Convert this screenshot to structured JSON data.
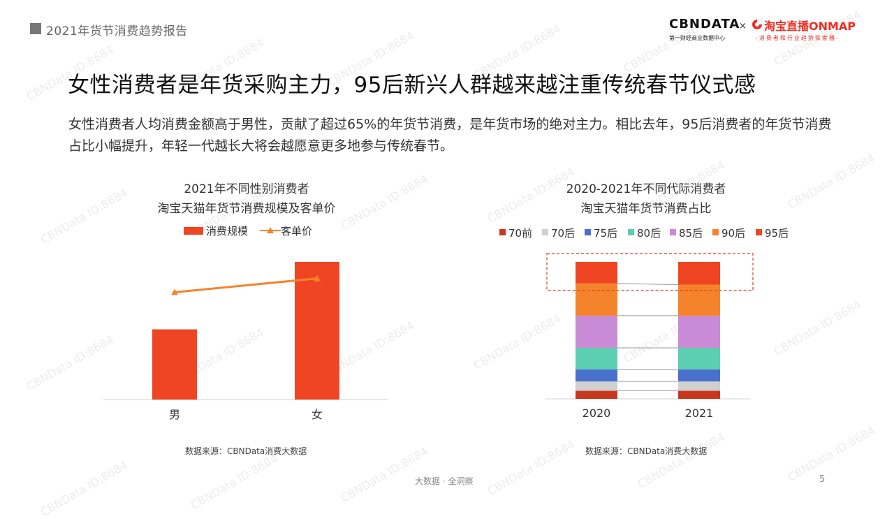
{
  "header": {
    "title": "2021年货节消费趋势报告"
  },
  "logos": {
    "cbn": "CBNDATA",
    "cbn_sub": "第一财经商业数据中心",
    "separator": "×",
    "taobao": "淘宝直播ONMAP",
    "taobao_sub": "-消费者和行业趋势探索器-"
  },
  "headline": "女性消费者是年货采购主力，95后新兴人群越来越注重传统春节仪式感",
  "subtext": "女性消费者人均消费金额高于男性，贡献了超过65%的年货节消费，是年货市场的绝对主力。相比去年，95后消费者的年货节消费占比小幅提升，年轻一代越长大将会越愿意更多地参与传统春节。",
  "watermark": "CBNData ID:8684",
  "chart_data": [
    {
      "type": "bar",
      "title": "2021年不同性别消费者",
      "subtitle": "淘宝天猫年货节消费规模及客单价",
      "categories": [
        "男",
        "女"
      ],
      "series": [
        {
          "name": "消费规模",
          "kind": "bar",
          "color": "#f04523",
          "values": [
            0.51,
            1.0
          ]
        },
        {
          "name": "客单价",
          "kind": "line",
          "color": "#f5832b",
          "values": [
            0.78,
            0.88
          ]
        }
      ],
      "value_scale": "relative, no axis labels shown",
      "legend_position": "top",
      "source": "数据来源：CBNData消费大数据"
    },
    {
      "type": "bar",
      "stacked": true,
      "title": "2020-2021年不同代际消费者",
      "subtitle": "淘宝天猫年货节消费占比",
      "categories": [
        "2020",
        "2021"
      ],
      "series": [
        {
          "name": "70前",
          "color": "#c8361d",
          "values": [
            6,
            6
          ]
        },
        {
          "name": "70后",
          "color": "#d0d0d0",
          "values": [
            7,
            7
          ]
        },
        {
          "name": "75后",
          "color": "#4a6fcc",
          "values": [
            9,
            9
          ]
        },
        {
          "name": "80后",
          "color": "#5ccfb2",
          "values": [
            16,
            16
          ]
        },
        {
          "name": "85后",
          "color": "#c98ad6",
          "values": [
            24,
            24
          ]
        },
        {
          "name": "90后",
          "color": "#f5832b",
          "values": [
            24,
            23
          ]
        },
        {
          "name": "95后",
          "color": "#f04523",
          "values": [
            16,
            17
          ]
        }
      ],
      "unit": "%",
      "legend_position": "top",
      "highlight": "95后",
      "source": "数据来源：CBNData消费大数据"
    }
  ],
  "footer": {
    "center": "大数据 · 全洞察",
    "page": "5"
  }
}
